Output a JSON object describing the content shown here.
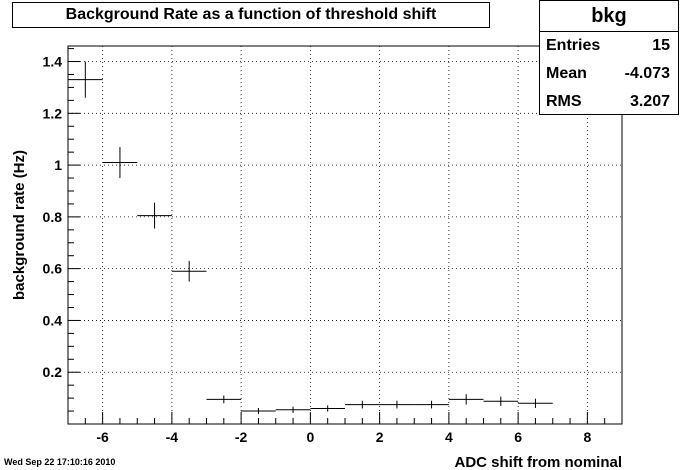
{
  "chart_data": {
    "type": "scatter",
    "title": "Background Rate as a function of threshold shift",
    "xlabel": "ADC shift from nominal",
    "ylabel": "background rate (Hz)",
    "xlim": [
      -7,
      9
    ],
    "ylim": [
      0,
      1.46
    ],
    "grid": true,
    "x_ticks": [
      -6,
      -4,
      -2,
      0,
      2,
      4,
      6,
      8
    ],
    "y_ticks": [
      0.2,
      0.4,
      0.6,
      0.8,
      1,
      1.2,
      1.4
    ],
    "x_tick_labels": [
      "-6",
      "-4",
      "-2",
      "0",
      "2",
      "4",
      "6",
      "8"
    ],
    "y_tick_labels": [
      "0.2",
      "0.4",
      "0.6",
      "0.8",
      "1",
      "1.2",
      "1.4"
    ],
    "points": [
      {
        "x": -6.5,
        "y": 1.33,
        "xerr": 0.5,
        "yerr": 0.07
      },
      {
        "x": -5.5,
        "y": 1.01,
        "xerr": 0.5,
        "yerr": 0.06
      },
      {
        "x": -4.5,
        "y": 0.805,
        "xerr": 0.5,
        "yerr": 0.05
      },
      {
        "x": -3.5,
        "y": 0.59,
        "xerr": 0.5,
        "yerr": 0.04
      },
      {
        "x": -2.5,
        "y": 0.095,
        "xerr": 0.5,
        "yerr": 0.015
      },
      {
        "x": -1.5,
        "y": 0.05,
        "xerr": 0.5,
        "yerr": 0.012
      },
      {
        "x": -0.5,
        "y": 0.055,
        "xerr": 0.5,
        "yerr": 0.012
      },
      {
        "x": 0.5,
        "y": 0.06,
        "xerr": 0.5,
        "yerr": 0.012
      },
      {
        "x": 1.5,
        "y": 0.075,
        "xerr": 0.5,
        "yerr": 0.015
      },
      {
        "x": 2.5,
        "y": 0.075,
        "xerr": 0.5,
        "yerr": 0.015
      },
      {
        "x": 3.5,
        "y": 0.075,
        "xerr": 0.5,
        "yerr": 0.015
      },
      {
        "x": 4.5,
        "y": 0.095,
        "xerr": 0.5,
        "yerr": 0.02
      },
      {
        "x": 5.5,
        "y": 0.088,
        "xerr": 0.5,
        "yerr": 0.018
      },
      {
        "x": 6.5,
        "y": 0.08,
        "xerr": 0.5,
        "yerr": 0.018
      }
    ]
  },
  "stats": {
    "name": "bkg",
    "entries_label": "Entries",
    "entries_value": "15",
    "mean_label": "Mean",
    "mean_value": "-4.073",
    "rms_label": "RMS",
    "rms_value": "3.207"
  },
  "footer": {
    "date": "Wed Sep 22 17:10:16 2010"
  }
}
